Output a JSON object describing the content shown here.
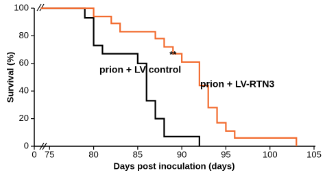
{
  "chart_data": {
    "type": "line",
    "step": "post",
    "xlabel": "Days post inoculation (days)",
    "ylabel": "Survival (%)",
    "xlim": [
      73.5,
      105
    ],
    "xticks": [
      0,
      75,
      80,
      85,
      90,
      95,
      100,
      105
    ],
    "ylim": [
      0,
      100
    ],
    "yticks": [
      0,
      20,
      40,
      60,
      80,
      100
    ],
    "axis_break": true,
    "series": [
      {
        "name": "prion + LV control",
        "color": "#000000",
        "x": [
          74,
          79,
          80,
          81,
          85,
          86,
          87,
          88,
          92
        ],
        "values": [
          100,
          93,
          73,
          67,
          60,
          33,
          20,
          7,
          0
        ]
      },
      {
        "name": "prion + LV-RTN3",
        "color": "#f26b2e",
        "x": [
          74,
          80,
          82,
          83,
          87,
          88,
          89,
          90,
          92,
          93,
          94,
          95,
          96,
          103
        ],
        "values": [
          100,
          94,
          89,
          83,
          78,
          72,
          67,
          61,
          44,
          28,
          17,
          11,
          6,
          0
        ]
      }
    ],
    "annotations": [
      {
        "text": "**",
        "x": 89,
        "y": 66
      }
    ]
  }
}
